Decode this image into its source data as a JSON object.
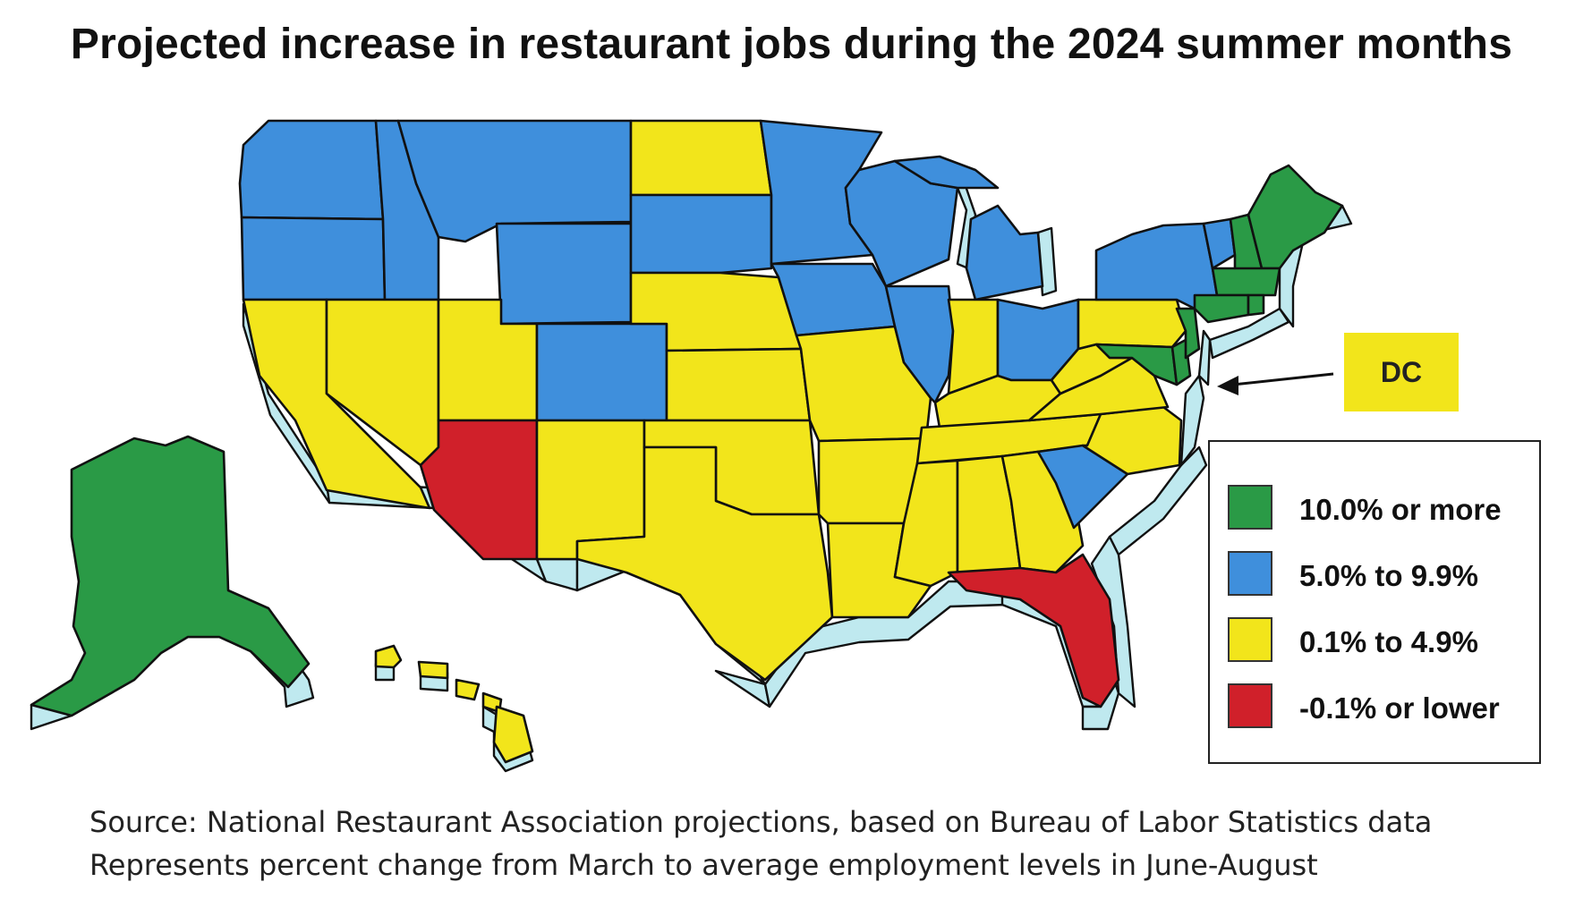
{
  "title": "Projected increase in restaurant jobs during the 2024 summer months",
  "colors": {
    "ten_plus": "#2a9a46",
    "five_to_ten": "#3f8fdc",
    "zero_to_five": "#f2e51b",
    "negative": "#d0202a",
    "side_shadow": "#bfe9ef"
  },
  "legend": [
    {
      "label": "10.0% or more",
      "color": "#2a9a46"
    },
    {
      "label": "5.0% to 9.9%",
      "color": "#3f8fdc"
    },
    {
      "label": "0.1% to 4.9%",
      "color": "#f2e51b"
    },
    {
      "label": "-0.1% or lower",
      "color": "#d0202a"
    }
  ],
  "dc_label": "DC",
  "source_line_1": "Source: National Restaurant Association projections, based on Bureau of Labor Statistics data",
  "source_line_2": "Represents percent change from March to average employment levels in June-August"
}
